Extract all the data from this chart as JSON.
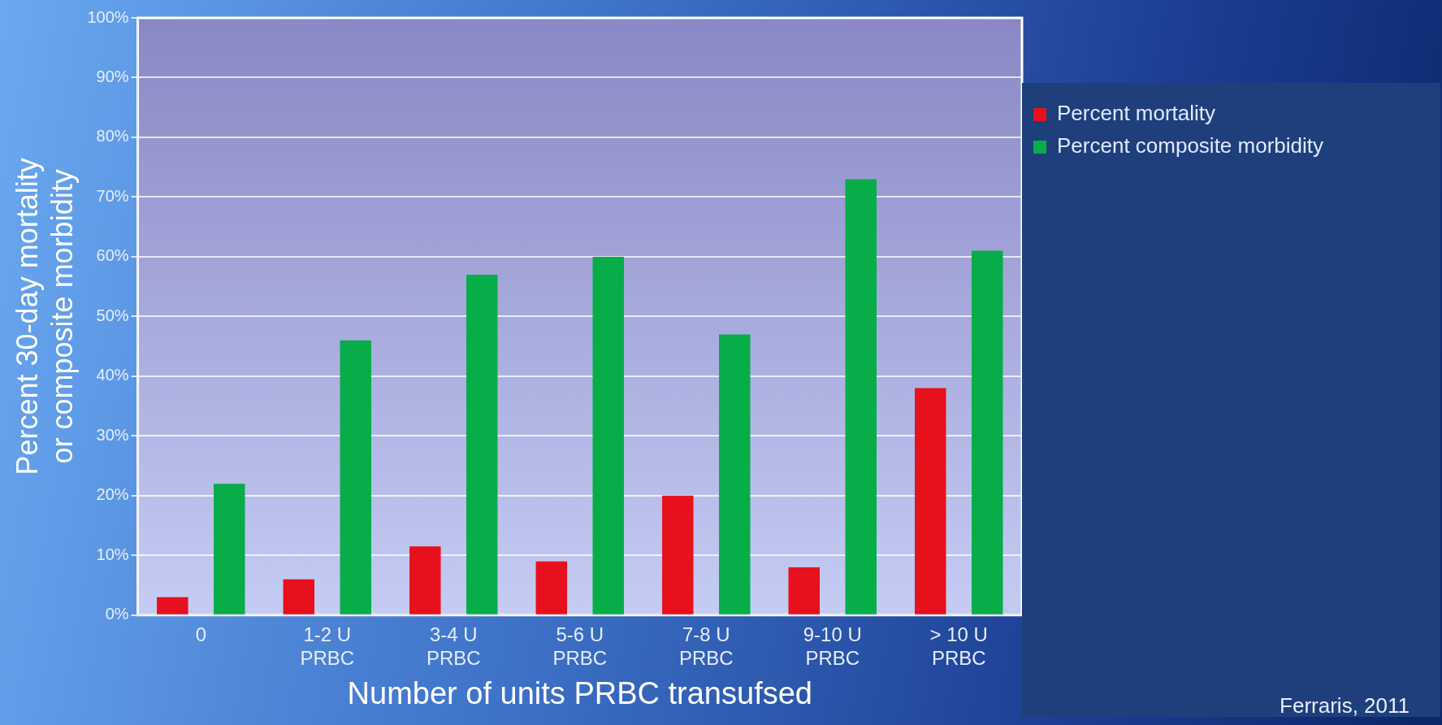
{
  "chart_data": {
    "type": "bar",
    "xlabel": "Number of units PRBC transufsed",
    "ylabel": "Percent 30-day mortality\nor composite morbidity",
    "categories": [
      "0",
      "1-2 U PRBC",
      "3-4 U PRBC",
      "5-6 U PRBC",
      "7-8 U PRBC",
      "9-10 U PRBC",
      "> 10 U PRBC"
    ],
    "series": [
      {
        "name": "Percent mortality",
        "color": "#e8101c",
        "values": [
          3,
          6,
          11.5,
          9,
          20,
          8,
          38
        ]
      },
      {
        "name": "Percent composite morbidity",
        "color": "#07ad48",
        "values": [
          22,
          46,
          57,
          60,
          47,
          73,
          61
        ]
      }
    ],
    "ylim": [
      0,
      100
    ],
    "yticks": [
      {
        "value": 0,
        "label": "0%"
      },
      {
        "value": 10,
        "label": "10%"
      },
      {
        "value": 20,
        "label": "20%"
      },
      {
        "value": 30,
        "label": "30%"
      },
      {
        "value": 40,
        "label": "40%"
      },
      {
        "value": 50,
        "label": "50%"
      },
      {
        "value": 60,
        "label": "60%"
      },
      {
        "value": 70,
        "label": "70%"
      },
      {
        "value": 80,
        "label": "80%"
      },
      {
        "value": 90,
        "label": "90%"
      },
      {
        "value": 100,
        "label": "100%"
      }
    ],
    "grid": "y",
    "legend": "right",
    "annotations": [
      "Ferraris, 2011"
    ]
  }
}
